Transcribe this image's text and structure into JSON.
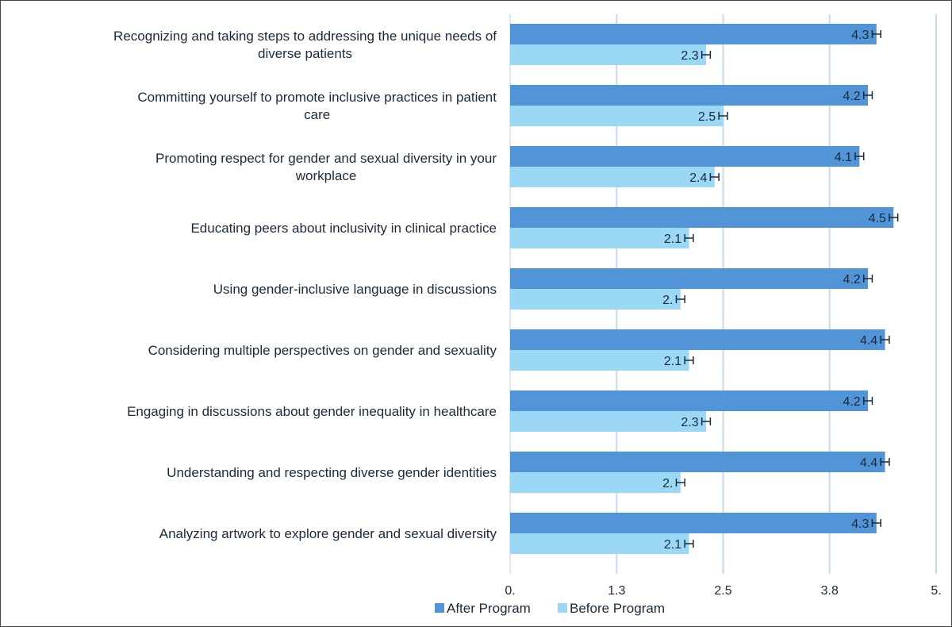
{
  "chart_data": {
    "type": "bar",
    "orientation": "horizontal",
    "categories": [
      [
        "Recognizing and taking steps to addressing the unique needs of",
        "diverse patients"
      ],
      [
        "Committing yourself to promote inclusive practices in patient",
        "care"
      ],
      [
        "Promoting respect for gender and sexual diversity in your",
        "workplace"
      ],
      [
        "Educating peers about inclusivity in clinical practice"
      ],
      [
        "Using gender-inclusive language in discussions"
      ],
      [
        "Considering multiple perspectives on gender and sexuality"
      ],
      [
        "Engaging in discussions about gender inequality in healthcare"
      ],
      [
        "Understanding and respecting diverse gender identities"
      ],
      [
        "Analyzing artwork to explore gender and sexual diversity"
      ]
    ],
    "series": [
      {
        "name": "After Program",
        "color": "#5294d8",
        "values": [
          4.3,
          4.2,
          4.1,
          4.5,
          4.2,
          4.4,
          4.2,
          4.4,
          4.3
        ],
        "labels": [
          "4.3",
          "4.2",
          "4.1",
          "4.5",
          "4.2",
          "4.4",
          "4.2",
          "4.4",
          "4.3"
        ],
        "error": [
          0.05,
          0.05,
          0.05,
          0.05,
          0.05,
          0.05,
          0.05,
          0.05,
          0.05
        ]
      },
      {
        "name": "Before Program",
        "color": "#9ad8f5",
        "values": [
          2.3,
          2.5,
          2.4,
          2.1,
          2.0,
          2.1,
          2.3,
          2.0,
          2.1
        ],
        "labels": [
          "2.3",
          "2.5",
          "2.4",
          "2.1",
          "2.",
          "2.1",
          "2.3",
          "2.",
          "2.1"
        ],
        "error": [
          0.05,
          0.05,
          0.05,
          0.05,
          0.05,
          0.05,
          0.05,
          0.05,
          0.05
        ]
      }
    ],
    "xlim": [
      0,
      5
    ],
    "ticks": [
      {
        "value": 0,
        "label": "0."
      },
      {
        "value": 1.25,
        "label": "1.3"
      },
      {
        "value": 2.5,
        "label": "2.5"
      },
      {
        "value": 3.75,
        "label": "3.8"
      },
      {
        "value": 5,
        "label": "5."
      }
    ],
    "grid": true,
    "legend_position": "bottom-center",
    "title": "",
    "xlabel": "",
    "ylabel": ""
  }
}
